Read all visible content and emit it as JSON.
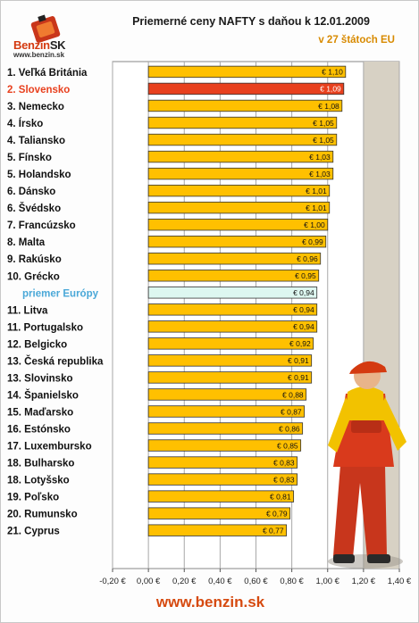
{
  "brand": {
    "name": "Benzin",
    "suffix": "SK",
    "url": "www.benzin.sk"
  },
  "footer_url": "www.benzin.sk",
  "colors": {
    "bar": "#ffc000",
    "highlight": "#e8401e",
    "average": "#ddf7f0",
    "plot_bg": "#d7d1c4",
    "highlight_label": "#e8401e",
    "average_label": "#4aa8d8"
  },
  "chart_data": {
    "type": "bar",
    "orientation": "horizontal",
    "title": "Priemerné ceny NAFTY s daňou k 12.01.2009",
    "subtitle": "v 27 štátoch EU",
    "categories": [
      "1. Veľká Británia",
      "2. Slovensko",
      "3. Nemecko",
      "4. Írsko",
      "4. Taliansko",
      "5. Fínsko",
      "5. Holandsko",
      "6. Dánsko",
      "6. Švédsko",
      "7. Francúzsko",
      "8. Malta",
      "9. Rakúsko",
      "10. Grécko",
      "priemer Európy",
      "11. Litva",
      "11. Portugalsko",
      "12. Belgicko",
      "13. Česká republika",
      "13. Slovinsko",
      "14. Španielsko",
      "15. Maďarsko",
      "16. Estónsko",
      "17. Luxembursko",
      "18. Bulharsko",
      "18. Lotyšsko",
      "19. Poľsko",
      "20. Rumunsko",
      "21. Cyprus"
    ],
    "values": [
      1.1,
      1.09,
      1.08,
      1.05,
      1.05,
      1.03,
      1.03,
      1.01,
      1.01,
      1.0,
      0.99,
      0.96,
      0.95,
      0.94,
      0.94,
      0.94,
      0.92,
      0.91,
      0.91,
      0.88,
      0.87,
      0.86,
      0.85,
      0.83,
      0.83,
      0.81,
      0.79,
      0.77
    ],
    "value_labels": [
      "€ 1,10",
      "€ 1,09",
      "€ 1,08",
      "€ 1,05",
      "€ 1,05",
      "€ 1,03",
      "€ 1,03",
      "€ 1,01",
      "€ 1,01",
      "€ 1,00",
      "€ 0,99",
      "€ 0,96",
      "€ 0,95",
      "€ 0,94",
      "€ 0,94",
      "€ 0,94",
      "€ 0,92",
      "€ 0,91",
      "€ 0,91",
      "€ 0,88",
      "€ 0,87",
      "€ 0,86",
      "€ 0,85",
      "€ 0,83",
      "€ 0,83",
      "€ 0,81",
      "€ 0,79",
      "€ 0,77"
    ],
    "highlight_category": "2. Slovensko",
    "average_category": "priemer Európy",
    "xlim": [
      -0.2,
      1.4
    ],
    "x_ticks": [
      -0.2,
      0,
      0.2,
      0.4,
      0.6,
      0.8,
      1.0,
      1.2,
      1.4
    ],
    "x_tick_labels": [
      "-0,20 €",
      "0,00 €",
      "0,20 €",
      "0,40 €",
      "0,60 €",
      "0,80 €",
      "1,00 €",
      "1,20 €",
      "1,40 €"
    ],
    "grid": true
  }
}
